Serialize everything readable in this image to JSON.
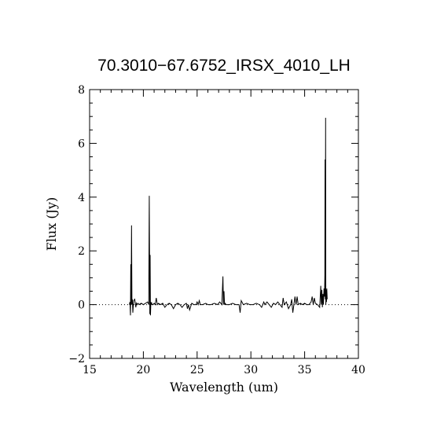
{
  "chart_data": {
    "type": "line",
    "title": "70.3010−67.6752_IRSX_4010_LH",
    "xlabel": "Wavelength (um)",
    "ylabel": "Flux (Jy)",
    "xlim": [
      15,
      40
    ],
    "ylim": [
      -2,
      8
    ],
    "xticks": [
      15,
      20,
      25,
      30,
      35,
      40
    ],
    "yticks": [
      -2,
      0,
      2,
      4,
      6,
      8
    ],
    "xtick_labels": [
      "15",
      "20",
      "25",
      "30",
      "35",
      "40"
    ],
    "ytick_labels": [
      "−2",
      "0",
      "2",
      "4",
      "6",
      "8"
    ],
    "reference_line": {
      "y": 0,
      "style": "dotted"
    },
    "grid": false,
    "series": [
      {
        "x": [
          18.7,
          18.75,
          18.8,
          18.83,
          18.86,
          18.9,
          18.94,
          18.98,
          19.02,
          19.1,
          19.2,
          19.3,
          19.35,
          19.4,
          19.5,
          19.6,
          19.8,
          20.0,
          20.2,
          20.4,
          20.5,
          20.55,
          20.6,
          20.63,
          20.66,
          20.7,
          20.74,
          20.78,
          20.82,
          20.9,
          21.0,
          21.1,
          21.2,
          21.3,
          21.4,
          21.6,
          21.8,
          22.0,
          22.2,
          22.4,
          22.6,
          22.8,
          23.0,
          23.2,
          23.4,
          23.6,
          23.8,
          24.0,
          24.1,
          24.2,
          24.3,
          24.5,
          24.7,
          24.9,
          25.0,
          25.1,
          25.2,
          25.3,
          25.5,
          25.8,
          26.0,
          26.3,
          26.6,
          26.9,
          27.1,
          27.3,
          27.4,
          27.45,
          27.5,
          27.55,
          27.6,
          27.7,
          28.0,
          28.3,
          28.6,
          28.9,
          29.0,
          29.1,
          29.3,
          29.6,
          29.9,
          30.2,
          30.5,
          30.8,
          31.0,
          31.2,
          31.3,
          31.5,
          31.7,
          31.9,
          32.1,
          32.3,
          32.5,
          32.7,
          32.9,
          33.0,
          33.1,
          33.3,
          33.5,
          33.7,
          33.8,
          33.9,
          34.0,
          34.1,
          34.2,
          34.3,
          34.4,
          34.6,
          34.8,
          35.0,
          35.2,
          35.4,
          35.6,
          35.7,
          35.8,
          35.9,
          36.0,
          36.2,
          36.4,
          36.5,
          36.55,
          36.6,
          36.65,
          36.7,
          36.75,
          36.8,
          36.85,
          36.88,
          36.9,
          36.92,
          36.95,
          36.97,
          37.0,
          37.03,
          37.06,
          37.1
        ],
        "y": [
          0.0,
          0.1,
          -0.4,
          1.5,
          0.0,
          2.95,
          0.0,
          0.2,
          -0.3,
          0.15,
          0.2,
          -0.1,
          0.05,
          0.0,
          0.05,
          0.0,
          0.05,
          0.0,
          0.05,
          0.1,
          0.0,
          4.05,
          -0.35,
          1.85,
          -0.4,
          0.1,
          0.0,
          0.05,
          0.0,
          0.0,
          0.05,
          0.0,
          0.25,
          0.0,
          0.05,
          0.0,
          0.05,
          -0.1,
          0.0,
          0.05,
          0.0,
          -0.15,
          0.0,
          0.05,
          0.0,
          -0.1,
          0.0,
          0.05,
          -0.15,
          0.0,
          -0.2,
          0.05,
          0.0,
          0.0,
          0.1,
          0.0,
          0.15,
          0.0,
          0.0,
          0.05,
          0.0,
          0.0,
          0.05,
          0.0,
          0.1,
          0.0,
          1.05,
          0.0,
          0.5,
          0.0,
          0.05,
          0.0,
          0.0,
          0.05,
          0.0,
          0.0,
          -0.3,
          0.15,
          0.0,
          0.05,
          0.0,
          0.0,
          0.05,
          0.0,
          -0.1,
          0.1,
          0.0,
          0.1,
          0.0,
          -0.1,
          0.05,
          0.0,
          0.1,
          0.0,
          -0.1,
          0.25,
          0.0,
          0.1,
          -0.15,
          0.0,
          0.2,
          -0.3,
          0.0,
          0.3,
          0.0,
          0.3,
          0.0,
          0.05,
          0.0,
          0.05,
          0.0,
          0.0,
          0.1,
          0.3,
          0.0,
          0.25,
          0.05,
          0.0,
          -0.1,
          0.7,
          0.0,
          0.55,
          -0.1,
          0.4,
          0.0,
          0.6,
          0.3,
          1.1,
          5.4,
          0.2,
          6.95,
          0.0,
          0.55,
          0.1,
          0.6,
          0.2
        ]
      }
    ]
  }
}
